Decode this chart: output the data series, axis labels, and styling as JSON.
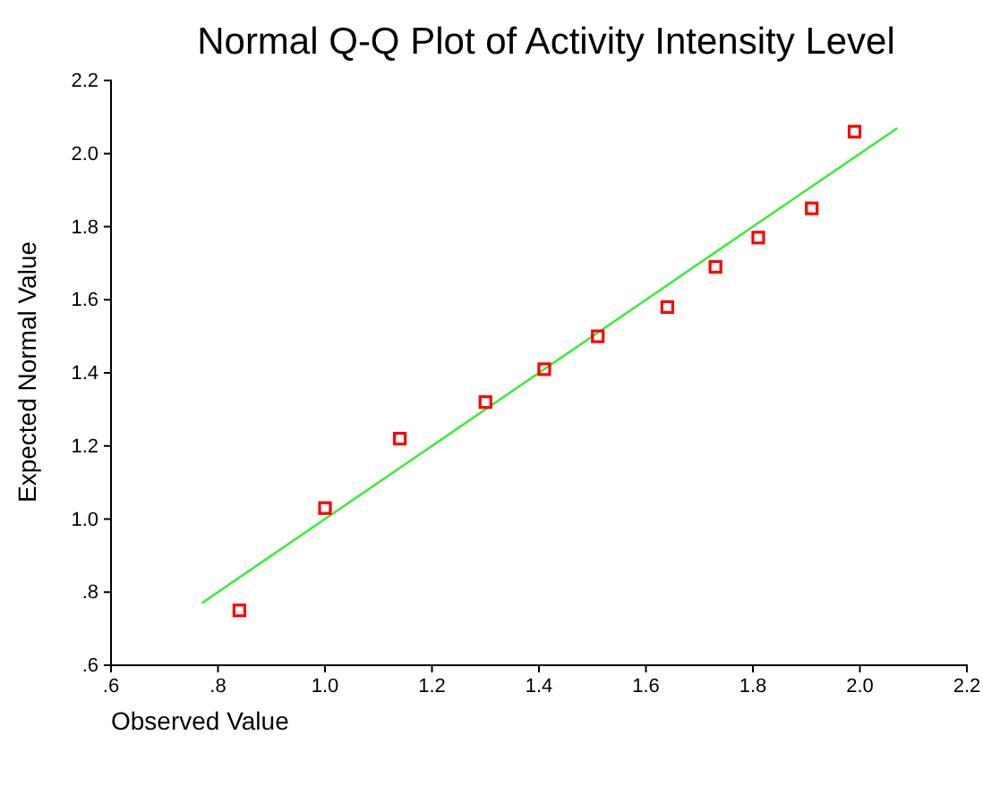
{
  "chart_data": {
    "type": "scatter",
    "title": "Normal Q-Q Plot of Activity Intensity Level",
    "xlabel": "Observed Value",
    "ylabel": "Expected Normal Value",
    "xlim": [
      0.6,
      2.2
    ],
    "ylim": [
      0.6,
      2.2
    ],
    "xticks": [
      {
        "value": 0.6,
        "label": ".6"
      },
      {
        "value": 0.8,
        "label": ".8"
      },
      {
        "value": 1.0,
        "label": "1.0"
      },
      {
        "value": 1.2,
        "label": "1.2"
      },
      {
        "value": 1.4,
        "label": "1.4"
      },
      {
        "value": 1.6,
        "label": "1.6"
      },
      {
        "value": 1.8,
        "label": "1.8"
      },
      {
        "value": 2.0,
        "label": "2.0"
      },
      {
        "value": 2.2,
        "label": "2.2"
      }
    ],
    "yticks": [
      {
        "value": 0.6,
        "label": ".6"
      },
      {
        "value": 0.8,
        "label": ".8"
      },
      {
        "value": 1.0,
        "label": "1.0"
      },
      {
        "value": 1.2,
        "label": "1.2"
      },
      {
        "value": 1.4,
        "label": "1.4"
      },
      {
        "value": 1.6,
        "label": "1.6"
      },
      {
        "value": 1.8,
        "label": "1.8"
      },
      {
        "value": 2.0,
        "label": "2.0"
      },
      {
        "value": 2.2,
        "label": "2.2"
      }
    ],
    "grid": false,
    "series": [
      {
        "marker": "square",
        "color": "#ff0000",
        "x": [
          0.84,
          1.0,
          1.14,
          1.3,
          1.41,
          1.51,
          1.64,
          1.73,
          1.81,
          1.91,
          1.99
        ],
        "values": [
          0.75,
          1.03,
          1.22,
          1.32,
          1.41,
          1.5,
          1.58,
          1.69,
          1.77,
          1.85,
          2.06
        ]
      },
      {
        "type": "line",
        "marker": "none",
        "color": "#33ee33",
        "x": [
          0.77,
          2.07
        ],
        "values": [
          0.77,
          2.07
        ]
      }
    ]
  }
}
